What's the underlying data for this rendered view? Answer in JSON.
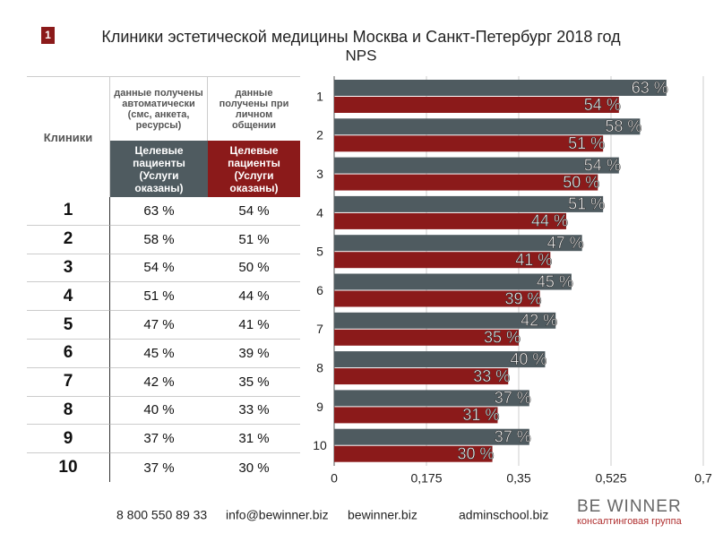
{
  "badge": "1",
  "chart_data": {
    "type": "barh",
    "title": "Клиники эстетической медицины Москва и Санкт-Петербург 2018 год",
    "subtitle": "NPS",
    "categories": [
      "1",
      "2",
      "3",
      "4",
      "5",
      "6",
      "7",
      "8",
      "9",
      "10"
    ],
    "series": [
      {
        "color": "#4f5b60",
        "values": [
          0.63,
          0.58,
          0.54,
          0.51,
          0.47,
          0.45,
          0.42,
          0.4,
          0.37,
          0.37
        ],
        "value_labels": [
          "63 %",
          "58 %",
          "54 %",
          "51 %",
          "47 %",
          "45 %",
          "42 %",
          "40 %",
          "37 %",
          "37 %"
        ]
      },
      {
        "color": "#8b1a1a",
        "values": [
          0.54,
          0.51,
          0.5,
          0.44,
          0.41,
          0.39,
          0.35,
          0.33,
          0.31,
          0.3
        ],
        "value_labels": [
          "54 %",
          "51 %",
          "50 %",
          "44 %",
          "41 %",
          "39 %",
          "35 %",
          "33 %",
          "31 %",
          "30 %"
        ]
      }
    ],
    "xlim": [
      0,
      0.7
    ],
    "xticks": [
      0,
      {
        "value": 0.175,
        "label": "0,175"
      },
      {
        "value": 0.35,
        "label": "0,35"
      },
      {
        "value": 0.525,
        "label": "0,525"
      },
      {
        "value": 0.7,
        "label": "0,7"
      }
    ],
    "grid": true
  },
  "table": {
    "header": [
      "Клиники",
      "данные получены автоматически (смс, анкета, ресурсы)",
      "данные получены при личном общении"
    ],
    "subheader": [
      "Целевые пациенты (Услуги оказаны)",
      "Целевые пациенты (Услуги оказаны)"
    ],
    "rows": [
      [
        "1",
        "63 %",
        "54 %"
      ],
      [
        "2",
        "58 %",
        "51 %"
      ],
      [
        "3",
        "54 %",
        "50 %"
      ],
      [
        "4",
        "51 %",
        "44 %"
      ],
      [
        "5",
        "47 %",
        "41 %"
      ],
      [
        "6",
        "45 %",
        "39 %"
      ],
      [
        "7",
        "42 %",
        "35 %"
      ],
      [
        "8",
        "40 %",
        "33 %"
      ],
      [
        "9",
        "37 %",
        "31 %"
      ],
      [
        "10",
        "37 %",
        "30 %"
      ]
    ]
  },
  "footer": {
    "contacts": [
      "8 800 550 89 33",
      "info@bewinner.biz",
      "bewinner.biz",
      "adminschool.biz"
    ],
    "logo": "BE WINNER",
    "logo_tagline": "консалтинговая группа"
  }
}
